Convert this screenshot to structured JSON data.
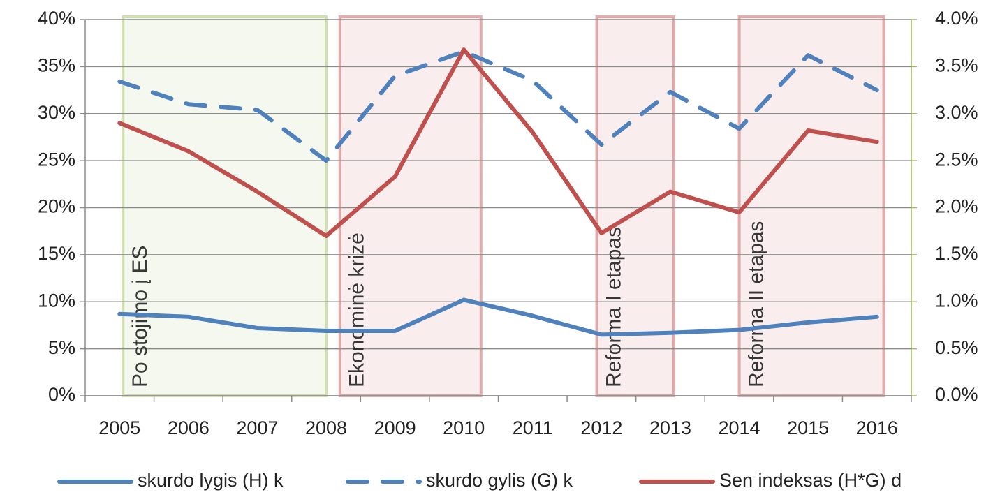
{
  "chart_data": {
    "type": "line",
    "categories": [
      "2005",
      "2006",
      "2007",
      "2008",
      "2009",
      "2010",
      "2011",
      "2012",
      "2013",
      "2014",
      "2015",
      "2016"
    ],
    "series": [
      {
        "name": "skurdo lygis (H) k",
        "color": "#4f81bd",
        "dash": false,
        "axis": "y",
        "values": [
          8.7,
          8.4,
          7.2,
          6.9,
          6.9,
          10.2,
          8.5,
          6.5,
          6.7,
          7.0,
          7.8,
          8.4
        ]
      },
      {
        "name": "skurdo gylis (G) k",
        "color": "#4f81bd",
        "dash": true,
        "axis": "y",
        "values": [
          33.4,
          31.0,
          30.4,
          25.0,
          34.0,
          36.6,
          33.5,
          26.7,
          32.3,
          28.4,
          36.2,
          32.5
        ]
      },
      {
        "name": "Sen indeksas (H*G) d",
        "color": "#c0504d",
        "dash": false,
        "axis": "y2",
        "values": [
          2.9,
          2.6,
          2.17,
          1.7,
          2.33,
          3.68,
          2.8,
          1.73,
          2.17,
          1.95,
          2.82,
          2.7
        ]
      }
    ],
    "ylim": [
      0,
      40
    ],
    "yticks": [
      {
        "value": 0,
        "label": "0%"
      },
      {
        "value": 5,
        "label": "5%"
      },
      {
        "value": 10,
        "label": "10%"
      },
      {
        "value": 15,
        "label": "15%"
      },
      {
        "value": 20,
        "label": "20%"
      },
      {
        "value": 25,
        "label": "25%"
      },
      {
        "value": 30,
        "label": "30%"
      },
      {
        "value": 35,
        "label": "35%"
      },
      {
        "value": 40,
        "label": "40%"
      }
    ],
    "y2lim": [
      0,
      4
    ],
    "y2ticks": [
      {
        "value": 0,
        "label": "0.0%"
      },
      {
        "value": 0.5,
        "label": "0.5%"
      },
      {
        "value": 1,
        "label": "1.0%"
      },
      {
        "value": 1.5,
        "label": "1.5%"
      },
      {
        "value": 2,
        "label": "2.0%"
      },
      {
        "value": 2.5,
        "label": "2.5%"
      },
      {
        "value": 3,
        "label": "3.0%"
      },
      {
        "value": 3.5,
        "label": "3.5%"
      },
      {
        "value": 4,
        "label": "4.0%"
      }
    ],
    "grid": true,
    "legend": "bottom",
    "annotations": [
      {
        "text": "Po stojimo į ES",
        "color": "#9bbb59"
      },
      {
        "text": "Ekonominė krizė",
        "color": "#c0504d"
      },
      {
        "text": "Reforma I etapas",
        "color": "#c0504d"
      },
      {
        "text": "Reforma II etapas",
        "color": "#c0504d"
      }
    ]
  }
}
